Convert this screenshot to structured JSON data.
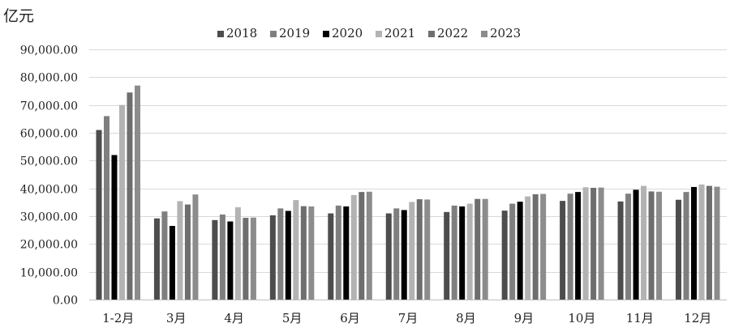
{
  "chart_data": {
    "type": "bar",
    "ylabel": "亿元",
    "ylim": [
      0,
      90000
    ],
    "yticks": [
      "0.00",
      "10,000.00",
      "20,000.00",
      "30,000.00",
      "40,000.00",
      "50,000.00",
      "60,000.00",
      "70,000.00",
      "80,000.00",
      "90,000.00"
    ],
    "ytick_values": [
      0,
      10000,
      20000,
      30000,
      40000,
      50000,
      60000,
      70000,
      80000,
      90000
    ],
    "grid": true,
    "legend_position": "top",
    "categories": [
      "1-2月",
      "3月",
      "4月",
      "5月",
      "6月",
      "7月",
      "8月",
      "9月",
      "10月",
      "11月",
      "12月"
    ],
    "series": [
      {
        "name": "2018",
        "color": "#4d4d4d",
        "values": [
          61000,
          29200,
          28600,
          30300,
          31000,
          31000,
          31500,
          32000,
          35500,
          35300,
          35900
        ]
      },
      {
        "name": "2019",
        "color": "#7f7f7f",
        "values": [
          66000,
          31700,
          30600,
          32800,
          33800,
          32800,
          33800,
          34500,
          38100,
          38100,
          38700
        ]
      },
      {
        "name": "2020",
        "color": "#000000",
        "values": [
          52000,
          26500,
          28100,
          31900,
          33500,
          32200,
          33500,
          35200,
          38700,
          39500,
          40500
        ]
      },
      {
        "name": "2021",
        "color": "#b3b3b3",
        "values": [
          70000,
          35400,
          33200,
          35800,
          37600,
          35100,
          34500,
          37100,
          40400,
          40900,
          41400
        ]
      },
      {
        "name": "2022",
        "color": "#6e6e6e",
        "values": [
          74500,
          34200,
          29400,
          33600,
          38700,
          36100,
          36200,
          37900,
          40200,
          38900,
          40900
        ]
      },
      {
        "name": "2023",
        "color": "#8c8c8c",
        "values": [
          77000,
          37800,
          29500,
          33500,
          38800,
          36000,
          36200,
          38000,
          40300,
          38800,
          40600
        ]
      }
    ]
  }
}
